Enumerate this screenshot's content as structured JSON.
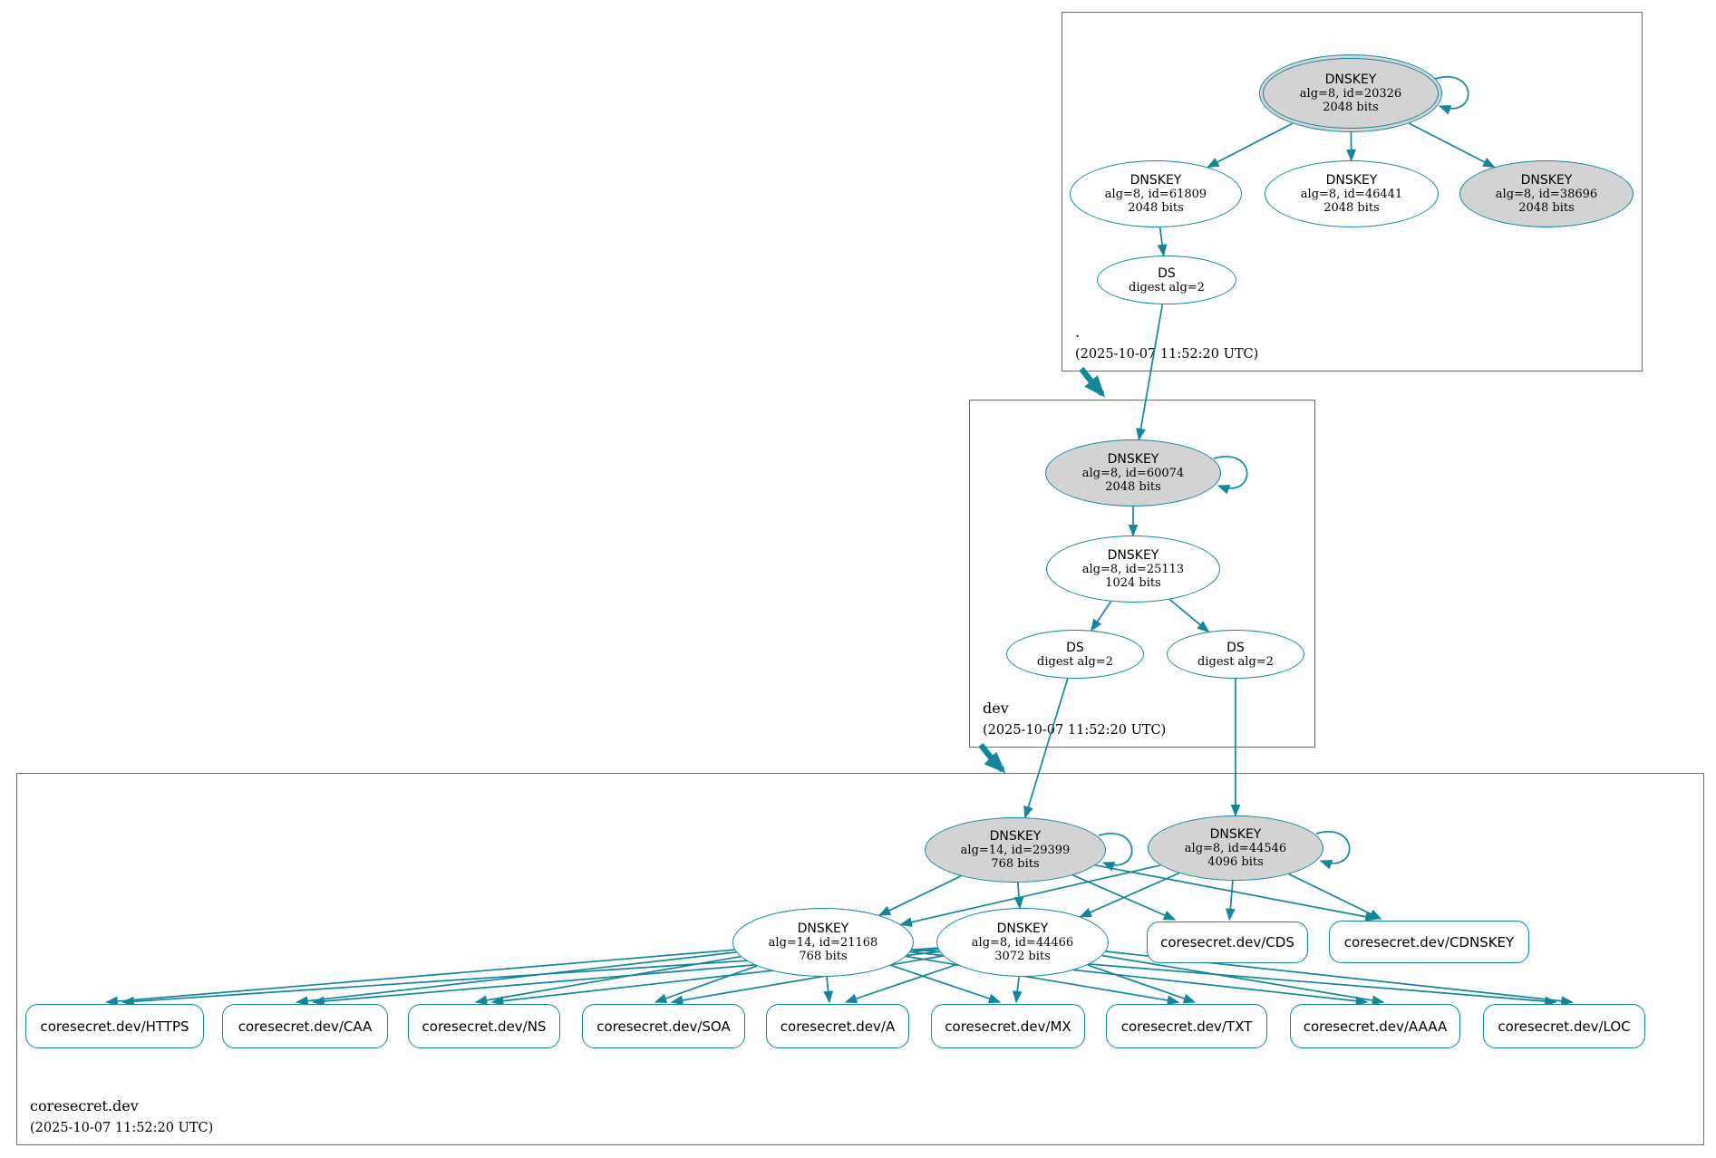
{
  "colors": {
    "edge": "#13869b",
    "node_fill": "#ffffff",
    "node_emphasis_fill": "#d3d3d3",
    "zone_box_border": "#6e6e6e",
    "text": "#000000"
  },
  "zones": [
    {
      "name": ".",
      "timestamp": "(2025-10-07 11:52:20 UTC)",
      "nodes": {
        "ksk20326": {
          "title": "DNSKEY",
          "detail1": "alg=8, id=20326",
          "detail2": "2048 bits"
        },
        "zsk61809": {
          "title": "DNSKEY",
          "detail1": "alg=8, id=61809",
          "detail2": "2048 bits"
        },
        "zsk46441": {
          "title": "DNSKEY",
          "detail1": "alg=8, id=46441",
          "detail2": "2048 bits"
        },
        "ksk38696": {
          "title": "DNSKEY",
          "detail1": "alg=8, id=38696",
          "detail2": "2048 bits"
        },
        "ds_root": {
          "title": "DS",
          "detail1": "digest alg=2"
        }
      }
    },
    {
      "name": "dev",
      "timestamp": "(2025-10-07 11:52:20 UTC)",
      "nodes": {
        "ksk60074": {
          "title": "DNSKEY",
          "detail1": "alg=8, id=60074",
          "detail2": "2048 bits"
        },
        "zsk25113": {
          "title": "DNSKEY",
          "detail1": "alg=8, id=25113",
          "detail2": "1024 bits"
        },
        "ds_dev_1": {
          "title": "DS",
          "detail1": "digest alg=2"
        },
        "ds_dev_2": {
          "title": "DS",
          "detail1": "digest alg=2"
        }
      }
    },
    {
      "name": "coresecret.dev",
      "timestamp": "(2025-10-07 11:52:20 UTC)",
      "nodes": {
        "ksk29399": {
          "title": "DNSKEY",
          "detail1": "alg=14, id=29399",
          "detail2": "768 bits"
        },
        "ksk44546": {
          "title": "DNSKEY",
          "detail1": "alg=8, id=44546",
          "detail2": "4096 bits"
        },
        "zsk21168": {
          "title": "DNSKEY",
          "detail1": "alg=14, id=21168",
          "detail2": "768 bits"
        },
        "zsk44466": {
          "title": "DNSKEY",
          "detail1": "alg=8, id=44466",
          "detail2": "3072 bits"
        },
        "rrset_cds": {
          "label": "coresecret.dev/CDS"
        },
        "rrset_cdnskey": {
          "label": "coresecret.dev/CDNSKEY"
        },
        "rrset_https": {
          "label": "coresecret.dev/HTTPS"
        },
        "rrset_caa": {
          "label": "coresecret.dev/CAA"
        },
        "rrset_ns": {
          "label": "coresecret.dev/NS"
        },
        "rrset_soa": {
          "label": "coresecret.dev/SOA"
        },
        "rrset_a": {
          "label": "coresecret.dev/A"
        },
        "rrset_mx": {
          "label": "coresecret.dev/MX"
        },
        "rrset_txt": {
          "label": "coresecret.dev/TXT"
        },
        "rrset_aaaa": {
          "label": "coresecret.dev/AAAA"
        },
        "rrset_loc": {
          "label": "coresecret.dev/LOC"
        }
      }
    }
  ],
  "edges": [
    {
      "from": "ksk20326",
      "to": "ksk20326"
    },
    {
      "from": "ksk20326",
      "to": "zsk61809"
    },
    {
      "from": "ksk20326",
      "to": "zsk46441"
    },
    {
      "from": "ksk20326",
      "to": "ksk38696"
    },
    {
      "from": "zsk61809",
      "to": "ds_root"
    },
    {
      "from": "ds_root",
      "to": "ksk60074"
    },
    {
      "from": "zone_root",
      "to": "zone_dev",
      "kind": "delegation"
    },
    {
      "from": "ksk60074",
      "to": "ksk60074"
    },
    {
      "from": "ksk60074",
      "to": "zsk25113"
    },
    {
      "from": "zsk25113",
      "to": "ds_dev_1"
    },
    {
      "from": "zsk25113",
      "to": "ds_dev_2"
    },
    {
      "from": "ds_dev_1",
      "to": "ksk29399"
    },
    {
      "from": "ds_dev_2",
      "to": "ksk44546"
    },
    {
      "from": "zone_dev",
      "to": "zone_coresecret",
      "kind": "delegation"
    },
    {
      "from": "ksk29399",
      "to": "ksk29399"
    },
    {
      "from": "ksk44546",
      "to": "ksk44546"
    },
    {
      "from": "ksk29399",
      "to": "zsk21168"
    },
    {
      "from": "ksk29399",
      "to": "zsk44466"
    },
    {
      "from": "ksk29399",
      "to": "rrset_cds"
    },
    {
      "from": "ksk29399",
      "to": "rrset_cdnskey"
    },
    {
      "from": "ksk44546",
      "to": "zsk21168"
    },
    {
      "from": "ksk44546",
      "to": "zsk44466"
    },
    {
      "from": "ksk44546",
      "to": "rrset_cds"
    },
    {
      "from": "ksk44546",
      "to": "rrset_cdnskey"
    },
    {
      "from": "zsk21168",
      "to": "rrset_https"
    },
    {
      "from": "zsk21168",
      "to": "rrset_caa"
    },
    {
      "from": "zsk21168",
      "to": "rrset_ns"
    },
    {
      "from": "zsk21168",
      "to": "rrset_soa"
    },
    {
      "from": "zsk21168",
      "to": "rrset_a"
    },
    {
      "from": "zsk21168",
      "to": "rrset_mx"
    },
    {
      "from": "zsk21168",
      "to": "rrset_txt"
    },
    {
      "from": "zsk21168",
      "to": "rrset_aaaa"
    },
    {
      "from": "zsk21168",
      "to": "rrset_loc"
    },
    {
      "from": "zsk44466",
      "to": "rrset_https"
    },
    {
      "from": "zsk44466",
      "to": "rrset_caa"
    },
    {
      "from": "zsk44466",
      "to": "rrset_ns"
    },
    {
      "from": "zsk44466",
      "to": "rrset_soa"
    },
    {
      "from": "zsk44466",
      "to": "rrset_a"
    },
    {
      "from": "zsk44466",
      "to": "rrset_mx"
    },
    {
      "from": "zsk44466",
      "to": "rrset_txt"
    },
    {
      "from": "zsk44466",
      "to": "rrset_aaaa"
    },
    {
      "from": "zsk44466",
      "to": "rrset_loc"
    }
  ]
}
